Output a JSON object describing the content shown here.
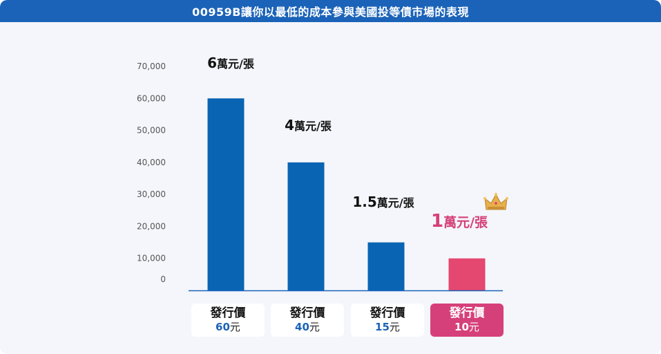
{
  "title": "00959B讓你以最低的成本參與美國投等債市場的表現",
  "colors": {
    "header": "#1b63b8",
    "bar_primary": "#0a64b4",
    "bar_highlight": "#e4476f",
    "highlight_label": "#d6407a",
    "axis": "#1b63b8"
  },
  "chart_data": {
    "type": "bar",
    "ylim": [
      0,
      70000
    ],
    "yticks": [
      "0",
      "10,000",
      "20,000",
      "30,000",
      "40,000",
      "50,000",
      "60,000",
      "70,000"
    ],
    "ytick_values": [
      0,
      10000,
      20000,
      30000,
      40000,
      50000,
      60000,
      70000
    ],
    "values": [
      60000,
      40000,
      15000,
      10000
    ],
    "highlight_index": 3,
    "data_labels": [
      {
        "num": "6",
        "unit": "萬元/張"
      },
      {
        "num": "4",
        "unit": "萬元/張"
      },
      {
        "num": "1.5",
        "unit": "萬元/張"
      },
      {
        "num": "1",
        "unit": "萬元/張"
      }
    ],
    "categories": [
      {
        "label": "發行價",
        "price": "60",
        "unit": "元"
      },
      {
        "label": "發行價",
        "price": "40",
        "unit": "元"
      },
      {
        "label": "發行價",
        "price": "15",
        "unit": "元"
      },
      {
        "label": "發行價",
        "price": "10",
        "unit": "元"
      }
    ],
    "grid": false,
    "decoration_icon": "crown-icon"
  }
}
